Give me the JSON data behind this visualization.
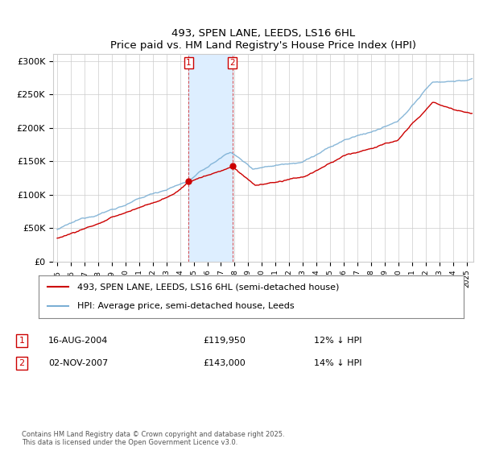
{
  "title": "493, SPEN LANE, LEEDS, LS16 6HL",
  "subtitle": "Price paid vs. HM Land Registry's House Price Index (HPI)",
  "ylabel_ticks": [
    "£0",
    "£50K",
    "£100K",
    "£150K",
    "£200K",
    "£250K",
    "£300K"
  ],
  "ylim": [
    0,
    310000
  ],
  "xlim_start": 1994.7,
  "xlim_end": 2025.5,
  "purchase1_date": 2004.62,
  "purchase1_label": "1",
  "purchase1_price": 119950,
  "purchase2_date": 2007.83,
  "purchase2_label": "2",
  "purchase2_price": 143000,
  "legend_line1": "493, SPEN LANE, LEEDS, LS16 6HL (semi-detached house)",
  "legend_line2": "HPI: Average price, semi-detached house, Leeds",
  "note1_num": "1",
  "note1_date": "16-AUG-2004",
  "note1_price": "£119,950",
  "note1_hpi": "12% ↓ HPI",
  "note2_num": "2",
  "note2_date": "02-NOV-2007",
  "note2_price": "£143,000",
  "note2_hpi": "14% ↓ HPI",
  "footer": "Contains HM Land Registry data © Crown copyright and database right 2025.\nThis data is licensed under the Open Government Licence v3.0.",
  "line_red": "#cc0000",
  "line_blue": "#7bafd4",
  "shade_color": "#ddeeff",
  "bg_color": "#ffffff",
  "grid_color": "#cccccc"
}
